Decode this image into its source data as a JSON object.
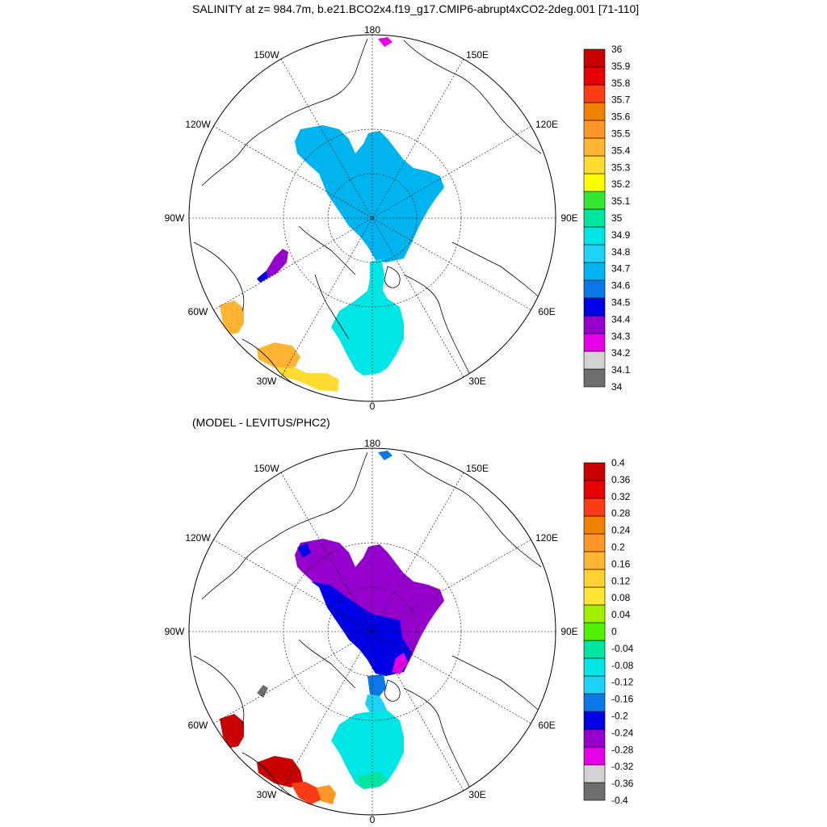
{
  "top_title": "SALINITY at z= 984.7m, b.e21.BCO2x4.f19_g17.CMIP6-abrupt4xCO2-2deg.001 [71-110]",
  "bottom_title": "(MODEL - LEVITUS/PHC2)",
  "longitude_labels": {
    "n180": "180",
    "w150": "150W",
    "e150": "150E",
    "w120": "120W",
    "e120": "120E",
    "w90": "90W",
    "e90": "90E",
    "w60": "60W",
    "e60": "60E",
    "w30": "30W",
    "e30": "30E",
    "zero": "0"
  },
  "colors": {
    "salinity": [
      "#6e6e6e",
      "#d2d2d2",
      "#e600e6",
      "#9600cd",
      "#0000e6",
      "#0a78e6",
      "#00b4f0",
      "#1ed2f5",
      "#00e6e6",
      "#00e6a0",
      "#32e632",
      "#ffff00",
      "#ffdc32",
      "#ffb432",
      "#ff9628",
      "#f08200",
      "#fa3c14",
      "#e60000",
      "#c80000"
    ],
    "diff": [
      "#6e6e6e",
      "#d2d2d2",
      "#e600e6",
      "#9600cd",
      "#0000e6",
      "#0a78e6",
      "#1ed2f5",
      "#00e6e6",
      "#00e6a0",
      "#50f000",
      "#a0f000",
      "#ffe632",
      "#ffd232",
      "#ffb432",
      "#ff9628",
      "#f08200",
      "#fa3c14",
      "#e60000",
      "#c80000"
    ]
  },
  "colorbar_top_labels": [
    "34",
    "34.1",
    "34.2",
    "34.3",
    "34.4",
    "34.5",
    "34.6",
    "34.7",
    "34.8",
    "34.9",
    "35",
    "35.1",
    "35.2",
    "35.3",
    "35.4",
    "35.5",
    "35.6",
    "35.7",
    "35.8",
    "35.9",
    "36"
  ],
  "colorbar_bottom_labels": [
    "-0.4",
    "-0.36",
    "-0.32",
    "-0.28",
    "-0.24",
    "-0.2",
    "-0.16",
    "-0.12",
    "-0.08",
    "-0.04",
    "0",
    "0.04",
    "0.08",
    "0.12",
    "0.16",
    "0.2",
    "0.24",
    "0.28",
    "0.32",
    "0.36",
    "0.4"
  ]
}
